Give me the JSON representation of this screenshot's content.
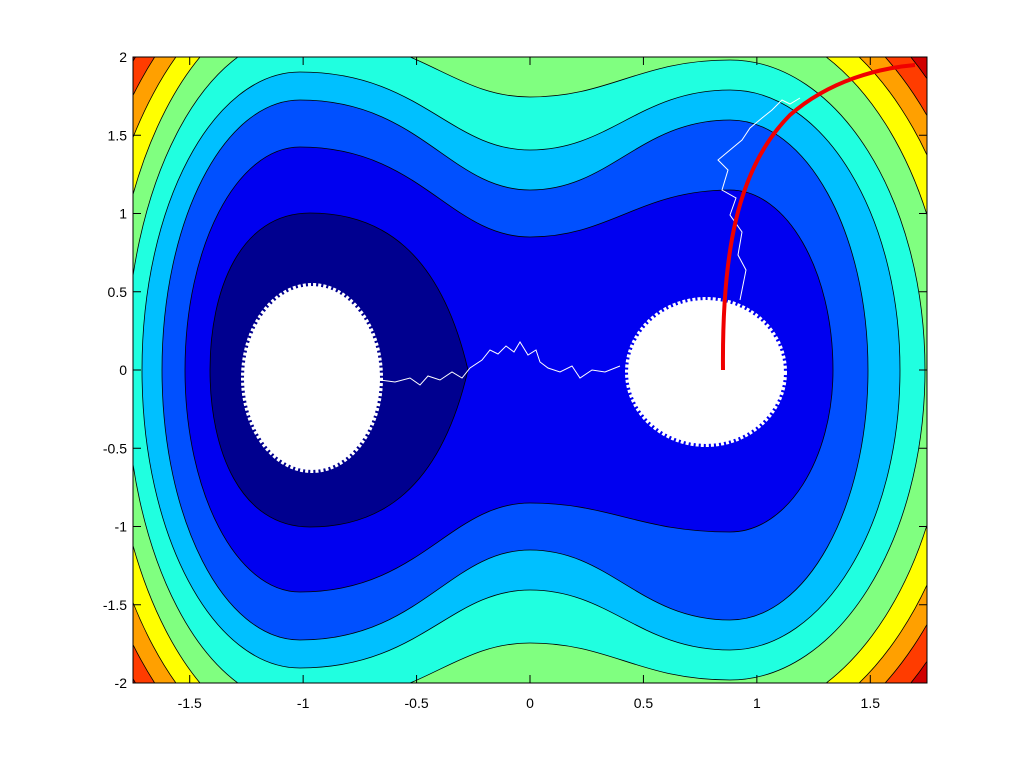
{
  "chart_data": {
    "type": "contour",
    "xlim": [
      -1.75,
      1.75
    ],
    "ylim": [
      -2,
      2
    ],
    "xticks": [
      -1.5,
      -1,
      -0.5,
      0,
      0.5,
      1,
      1.5
    ],
    "yticks": [
      -2,
      -1.5,
      -1,
      -0.5,
      0,
      0.5,
      1,
      1.5,
      2
    ]
  }
}
